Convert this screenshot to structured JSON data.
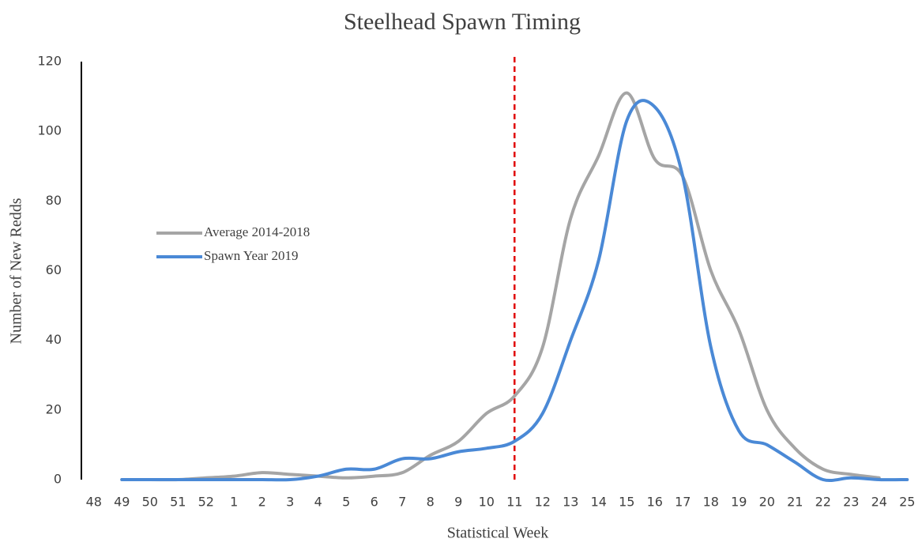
{
  "chart_data": {
    "type": "line",
    "title": "Steelhead Spawn Timing",
    "x_label": "Statistical Week",
    "y_label": "Number of New Redds",
    "categories": [
      "48",
      "49",
      "50",
      "51",
      "52",
      "1",
      "2",
      "3",
      "4",
      "5",
      "6",
      "7",
      "8",
      "9",
      "10",
      "11",
      "12",
      "13",
      "14",
      "15",
      "16",
      "17",
      "18",
      "19",
      "20",
      "21",
      "22",
      "23",
      "24",
      "25"
    ],
    "series": [
      {
        "name": "Average 2014-2018",
        "color": "#a5a5a5",
        "values": [
          null,
          0,
          0,
          0,
          0.5,
          1,
          2,
          1.5,
          1,
          0.5,
          1,
          2,
          7,
          11,
          19,
          24,
          38,
          75,
          93,
          111,
          92,
          87,
          60,
          43,
          20,
          9,
          3,
          1.5,
          0.5,
          null
        ]
      },
      {
        "name": "Spawn Year 2019",
        "color": "#4a89d6",
        "values": [
          null,
          0,
          0,
          0,
          0,
          0,
          0,
          0,
          1,
          3,
          3,
          6,
          6,
          8,
          9,
          11,
          19,
          40,
          63,
          103,
          107,
          87,
          38,
          14,
          10,
          5,
          0,
          0.5,
          0,
          0
        ]
      }
    ],
    "ylim": [
      0,
      120
    ],
    "yticks": [
      0,
      20,
      40,
      60,
      80,
      100,
      120
    ],
    "grid": false,
    "legend": "left",
    "vline": {
      "category": "11",
      "color": "#e00000"
    }
  }
}
